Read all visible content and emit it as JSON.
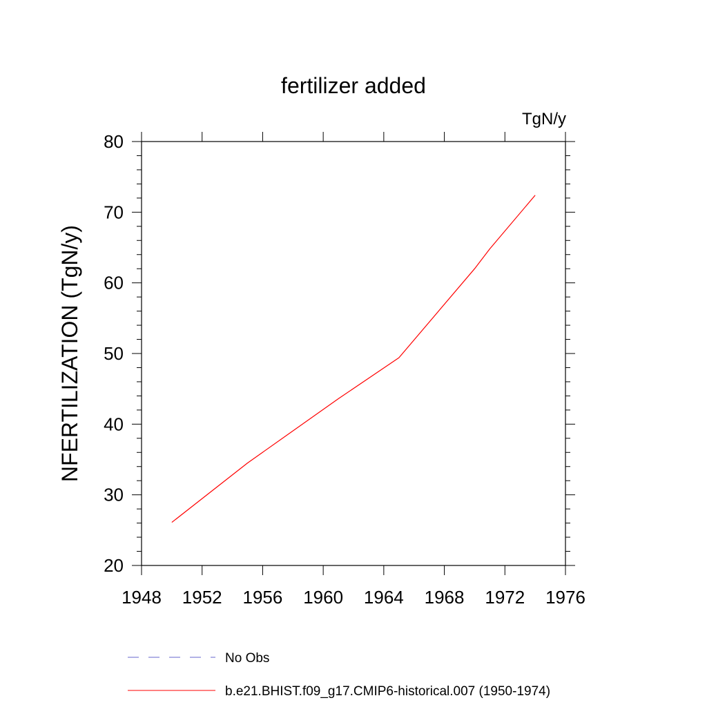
{
  "chart_data": {
    "type": "line",
    "title": "fertilizer added",
    "units": "TgN/y",
    "xlabel": "",
    "ylabel": "NFERTILIZATION  (TgN/y)",
    "xlim": [
      1948,
      1976
    ],
    "ylim": [
      20,
      80
    ],
    "xticks": [
      1948,
      1952,
      1956,
      1960,
      1964,
      1968,
      1972,
      1976
    ],
    "yticks": [
      20,
      30,
      40,
      50,
      60,
      70,
      80
    ],
    "grid": false,
    "legend_position": "bottom",
    "series": [
      {
        "name": "b.e21.BHIST.f09_g17.CMIP6-historical.007 (1950-1974)",
        "color": "#ff0000",
        "style": "solid",
        "x": [
          1950,
          1955,
          1961,
          1965,
          1970,
          1971,
          1974
        ],
        "y": [
          26.1,
          34.5,
          43.6,
          49.4,
          62.0,
          64.8,
          72.4
        ]
      }
    ],
    "legend": [
      {
        "name": "No Obs",
        "color": "#6666cc",
        "style": "dashed"
      },
      {
        "name": "b.e21.BHIST.f09_g17.CMIP6-historical.007 (1950-1974)",
        "color": "#ff0000",
        "style": "solid"
      }
    ]
  }
}
